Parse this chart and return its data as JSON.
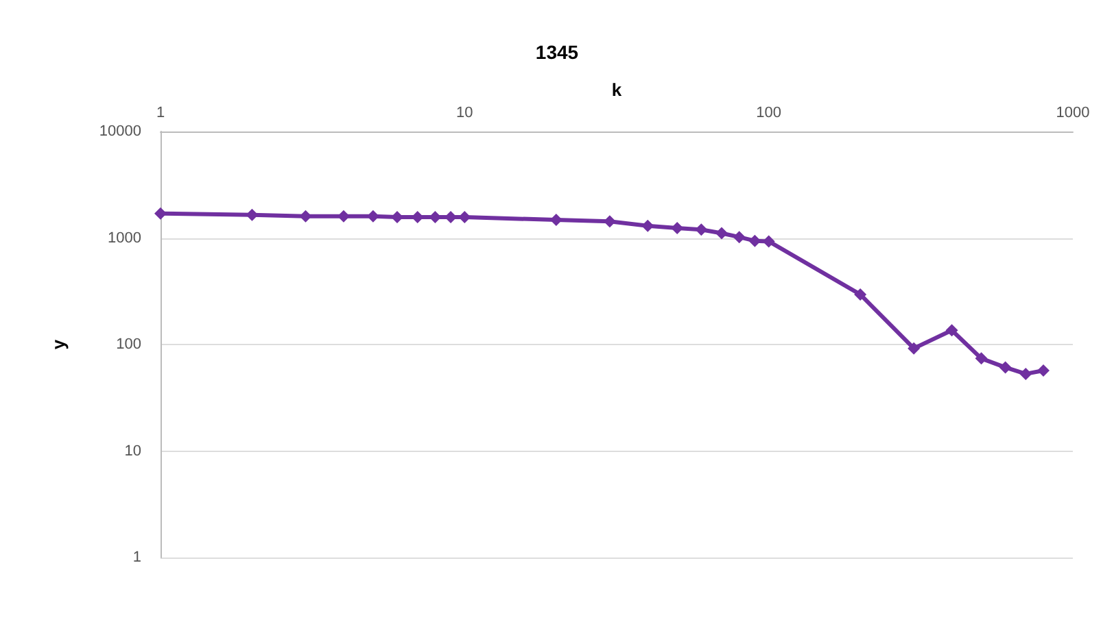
{
  "chart_data": {
    "type": "line",
    "title": "1345",
    "xlabel": "k",
    "ylabel": "y",
    "x": [
      1,
      2,
      3,
      4,
      5,
      6,
      7,
      8,
      9,
      10,
      20,
      30,
      40,
      50,
      60,
      70,
      80,
      90,
      100,
      200,
      300,
      400,
      500,
      600,
      700,
      800
    ],
    "series": [
      {
        "color": "#7030a0",
        "values": [
          1700,
          1650,
          1600,
          1600,
          1600,
          1570,
          1570,
          1570,
          1570,
          1570,
          1480,
          1430,
          1300,
          1240,
          1200,
          1110,
          1020,
          940,
          930,
          295,
          92,
          136,
          74,
          61,
          53,
          57
        ]
      }
    ],
    "log": "xy",
    "xlim": [
      1,
      1000
    ],
    "xticks": [
      1,
      10,
      100,
      1000
    ],
    "ylim": [
      1,
      10000
    ],
    "yticks": [
      1,
      10,
      100,
      1000,
      10000
    ],
    "grid": "y",
    "marker": "diamond",
    "line_style": "solid"
  }
}
